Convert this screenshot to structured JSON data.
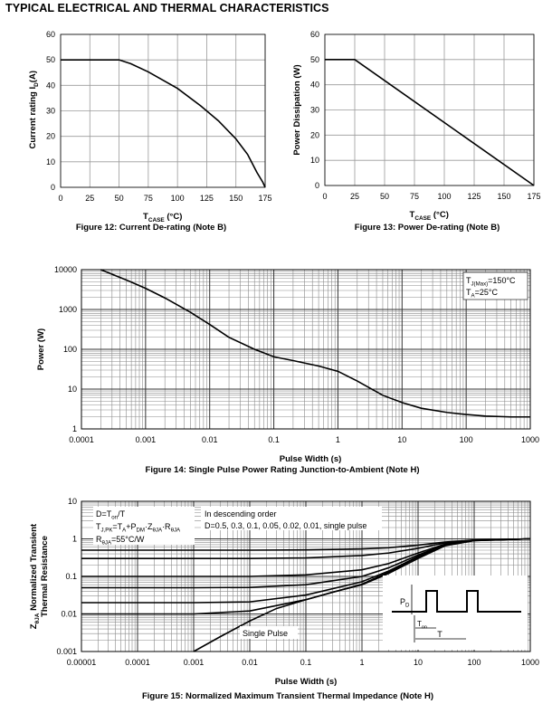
{
  "page_title": "TYPICAL ELECTRICAL AND THERMAL CHARACTERISTICS",
  "chart_data": [
    {
      "id": "fig12",
      "type": "line",
      "caption": "Figure 12: Current De-rating (Note B)",
      "xlabel": "T_CASE (°C)",
      "ylabel": "Current rating I_D(A)",
      "x_ticks": [
        0,
        25,
        50,
        75,
        100,
        125,
        150,
        175
      ],
      "y_ticks": [
        0,
        10,
        20,
        30,
        40,
        50,
        60
      ],
      "xlim": [
        0,
        175
      ],
      "ylim": [
        0,
        60
      ],
      "grid": true,
      "series": [
        {
          "name": "Current rating",
          "x": [
            0,
            50,
            60,
            75,
            100,
            120,
            135,
            150,
            160,
            168,
            173,
            175
          ],
          "y": [
            50,
            50,
            48.5,
            45.3,
            38.8,
            31.9,
            26.1,
            19.0,
            12.9,
            5.8,
            2.0,
            0
          ]
        }
      ]
    },
    {
      "id": "fig13",
      "type": "line",
      "caption": "Figure 13: Power De-rating (Note B)",
      "xlabel": "T_CASE (°C)",
      "ylabel": "Power Dissipation (W)",
      "x_ticks": [
        0,
        25,
        50,
        75,
        100,
        125,
        150,
        175
      ],
      "y_ticks": [
        0,
        10,
        20,
        30,
        40,
        50,
        60
      ],
      "xlim": [
        0,
        175
      ],
      "ylim": [
        0,
        60
      ],
      "grid": true,
      "series": [
        {
          "name": "Power dissipation",
          "x": [
            0,
            25,
            175
          ],
          "y": [
            50,
            50,
            0
          ]
        }
      ]
    },
    {
      "id": "fig14",
      "type": "line",
      "caption": "Figure 14: Single Pulse Power Rating Junction-to-Ambient (Note H)",
      "xlabel": "Pulse Width (s)",
      "ylabel": "Power (W)",
      "x_scale": "log",
      "y_scale": "log",
      "x_ticks": [
        0.0001,
        0.001,
        0.01,
        0.1,
        1,
        10,
        100,
        1000
      ],
      "x_tick_labels": [
        "0.0001",
        "0.001",
        "0.01",
        "0.1",
        "1",
        "10",
        "100",
        "1000"
      ],
      "y_ticks": [
        1,
        10,
        100,
        1000,
        10000
      ],
      "y_tick_labels": [
        "1",
        "10",
        "100",
        "1000",
        "10000"
      ],
      "xlim": [
        0.0001,
        1000
      ],
      "ylim": [
        1,
        10000
      ],
      "grid": true,
      "legend": {
        "position": "top-right",
        "line1": {
          "prefix": "T",
          "sub": "J(Max)",
          "suffix": "=150°C"
        },
        "line2": {
          "prefix": "T",
          "sub": "A",
          "suffix": "=25°C"
        }
      },
      "series": [
        {
          "name": "Single pulse power",
          "x": [
            0.0002,
            0.0005,
            0.001,
            0.002,
            0.005,
            0.01,
            0.02,
            0.05,
            0.1,
            0.2,
            0.5,
            1,
            2,
            5,
            10,
            20,
            50,
            100,
            200,
            500,
            1000
          ],
          "y": [
            10000,
            5500,
            3400,
            1950,
            850,
            420,
            200,
            100,
            65,
            52,
            38,
            28,
            16,
            7,
            4.6,
            3.3,
            2.6,
            2.3,
            2.1,
            2.0,
            2.0
          ]
        }
      ]
    },
    {
      "id": "fig15",
      "type": "line",
      "caption": "Figure 15: Normalized Maximum Transient Thermal Impedance (Note H)",
      "xlabel": "Pulse Width (s)",
      "ylabel": "Z_θJA Normalized Transient Thermal Resistance",
      "x_scale": "log",
      "y_scale": "log",
      "x_ticks": [
        1e-05,
        0.0001,
        0.001,
        0.01,
        0.1,
        1,
        10,
        100,
        1000
      ],
      "x_tick_labels": [
        "0.00001",
        "0.0001",
        "0.001",
        "0.01",
        "0.1",
        "1",
        "10",
        "100",
        "1000"
      ],
      "y_ticks": [
        0.001,
        0.01,
        0.1,
        1,
        10
      ],
      "y_tick_labels": [
        "0.001",
        "0.01",
        "0.1",
        "1",
        "10"
      ],
      "xlim": [
        1e-05,
        1000
      ],
      "ylim": [
        0.001,
        10
      ],
      "grid": true,
      "annotations": {
        "eq_line1": {
          "prefix": "D=T",
          "sub": "on",
          "suffix": "/T"
        },
        "eq_line2": {
          "parts": [
            [
              "T",
              "J,PK"
            ],
            [
              "=T",
              "A"
            ],
            [
              "+P",
              "DM"
            ],
            [
              "·Z",
              "θJA"
            ],
            [
              "·R",
              "θJA"
            ]
          ]
        },
        "eq_line3": {
          "prefix": "R",
          "sub": "θJA",
          "suffix": "=55°C/W"
        },
        "order_line1": "In descending order",
        "order_line2": "D=0.5, 0.3, 0.1, 0.05, 0.02, 0.01, single pulse",
        "single_pulse_label": "Single Pulse",
        "inset_pd": {
          "prefix": "P",
          "sub": "D"
        },
        "inset_ton": {
          "prefix": "T",
          "sub": "on"
        },
        "inset_t": "T"
      },
      "series": [
        {
          "name": "D=0.5",
          "x": [
            1e-05,
            0.001,
            0.01,
            0.1,
            1,
            3,
            10,
            30,
            100,
            1000
          ],
          "y": [
            0.5,
            0.5,
            0.5,
            0.51,
            0.54,
            0.58,
            0.68,
            0.82,
            0.93,
            1.0
          ]
        },
        {
          "name": "D=0.3",
          "x": [
            1e-05,
            0.001,
            0.01,
            0.1,
            1,
            3,
            10,
            30,
            100,
            1000
          ],
          "y": [
            0.3,
            0.3,
            0.3,
            0.31,
            0.36,
            0.42,
            0.56,
            0.78,
            0.93,
            1.0
          ]
        },
        {
          "name": "D=0.1",
          "x": [
            1e-05,
            0.001,
            0.01,
            0.1,
            1,
            3,
            10,
            30,
            100,
            1000
          ],
          "y": [
            0.1,
            0.1,
            0.1,
            0.11,
            0.15,
            0.22,
            0.42,
            0.72,
            0.92,
            1.0
          ]
        },
        {
          "name": "D=0.05",
          "x": [
            1e-05,
            0.001,
            0.01,
            0.1,
            1,
            3,
            10,
            30,
            100,
            1000
          ],
          "y": [
            0.05,
            0.05,
            0.051,
            0.06,
            0.1,
            0.17,
            0.37,
            0.7,
            0.91,
            1.0
          ]
        },
        {
          "name": "D=0.02",
          "x": [
            1e-05,
            0.001,
            0.01,
            0.1,
            1,
            3,
            10,
            30,
            100,
            1000
          ],
          "y": [
            0.02,
            0.02,
            0.021,
            0.032,
            0.072,
            0.14,
            0.34,
            0.68,
            0.91,
            1.0
          ]
        },
        {
          "name": "D=0.01",
          "x": [
            1e-05,
            0.001,
            0.01,
            0.1,
            1,
            3,
            10,
            30,
            100,
            1000
          ],
          "y": [
            0.01,
            0.01,
            0.012,
            0.024,
            0.062,
            0.13,
            0.33,
            0.67,
            0.9,
            1.0
          ]
        },
        {
          "name": "Single pulse",
          "x": [
            0.001,
            0.003,
            0.01,
            0.03,
            0.1,
            0.3,
            1,
            3,
            10,
            30,
            100,
            1000
          ],
          "y": [
            0.001,
            0.0025,
            0.0065,
            0.014,
            0.024,
            0.038,
            0.06,
            0.12,
            0.3,
            0.65,
            0.9,
            1.0
          ]
        }
      ]
    }
  ]
}
